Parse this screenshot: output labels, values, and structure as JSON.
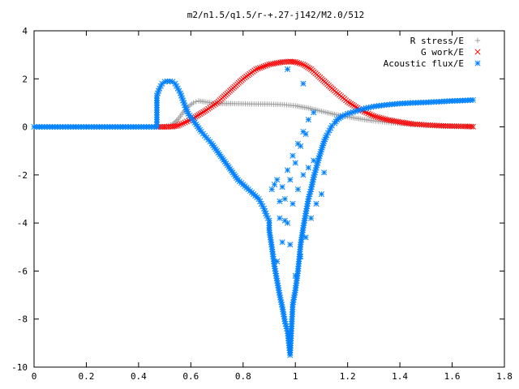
{
  "chart_data": {
    "type": "scatter",
    "title": "m2/n1.5/q1.5/r-+.27-j142/M2.0/512",
    "xlabel": "",
    "ylabel": "",
    "xlim": [
      0,
      1.8
    ],
    "ylim": [
      -10,
      4
    ],
    "x_ticks": [
      "0",
      "0.2",
      "0.4",
      "0.6",
      "0.8",
      "1",
      "1.2",
      "1.4",
      "1.6",
      "1.8"
    ],
    "y_ticks": [
      "4",
      "2",
      "0",
      "-2",
      "-4",
      "-6",
      "-8",
      "-10"
    ],
    "grid": false,
    "legend_position": "top-right",
    "series": [
      {
        "name": "R stress/E",
        "marker": "plus",
        "color": "#a0a0a0",
        "x": [
          0.47,
          0.5,
          0.53,
          0.55,
          0.57,
          0.59,
          0.61,
          0.62,
          0.63,
          0.65,
          0.68,
          0.7,
          0.73,
          0.76,
          0.8,
          0.85,
          0.9,
          0.95,
          1.0,
          1.05,
          1.1,
          1.15,
          1.2,
          1.25,
          1.3,
          1.35,
          1.4,
          1.45,
          1.5,
          1.55,
          1.6,
          1.65,
          1.68
        ],
        "y": [
          0.0,
          0.02,
          0.1,
          0.3,
          0.6,
          0.85,
          1.0,
          1.05,
          1.08,
          1.05,
          1.0,
          0.98,
          0.97,
          0.97,
          0.96,
          0.95,
          0.95,
          0.93,
          0.88,
          0.78,
          0.65,
          0.52,
          0.42,
          0.33,
          0.25,
          0.19,
          0.14,
          0.1,
          0.07,
          0.05,
          0.04,
          0.03,
          0.02
        ]
      },
      {
        "name": "G work/E",
        "marker": "cross",
        "color": "#ff0000",
        "x": [
          0.47,
          0.5,
          0.53,
          0.55,
          0.57,
          0.6,
          0.63,
          0.66,
          0.7,
          0.75,
          0.8,
          0.85,
          0.9,
          0.95,
          0.98,
          1.0,
          1.03,
          1.06,
          1.1,
          1.15,
          1.2,
          1.25,
          1.3,
          1.35,
          1.4,
          1.45,
          1.5,
          1.55,
          1.6,
          1.65,
          1.68
        ],
        "y": [
          0.0,
          0.0,
          0.01,
          0.05,
          0.15,
          0.3,
          0.5,
          0.7,
          1.0,
          1.5,
          2.0,
          2.4,
          2.6,
          2.7,
          2.72,
          2.7,
          2.6,
          2.4,
          2.0,
          1.5,
          1.05,
          0.7,
          0.45,
          0.3,
          0.2,
          0.12,
          0.08,
          0.05,
          0.03,
          0.02,
          0.01
        ]
      },
      {
        "name": "Acoustic flux/E",
        "marker": "star",
        "color": "#0080ff",
        "x": [
          0.0,
          0.04,
          0.08,
          0.12,
          0.16,
          0.2,
          0.24,
          0.28,
          0.32,
          0.36,
          0.4,
          0.44,
          0.47,
          0.47,
          0.48,
          0.49,
          0.5,
          0.51,
          0.52,
          0.53,
          0.54,
          0.55,
          0.56,
          0.57,
          0.58,
          0.59,
          0.6,
          0.61,
          0.62,
          0.63,
          0.64,
          0.66,
          0.68,
          0.7,
          0.72,
          0.74,
          0.76,
          0.78,
          0.8,
          0.82,
          0.84,
          0.86,
          0.87,
          0.88,
          0.89,
          0.9,
          0.9,
          0.91,
          0.92,
          0.93,
          0.94,
          0.95,
          0.96,
          0.97,
          0.98,
          0.99,
          1.0,
          1.01,
          1.02,
          1.03,
          1.04,
          1.05,
          1.06,
          1.07,
          1.08,
          1.09,
          1.1,
          1.11,
          1.12,
          1.13,
          1.14,
          1.15,
          1.16,
          1.18,
          1.2,
          1.23,
          1.26,
          1.3,
          1.35,
          1.4,
          1.45,
          1.5,
          1.55,
          1.6,
          1.65,
          1.68,
          0.95,
          0.97,
          0.99,
          1.01,
          1.03,
          1.05,
          0.94,
          0.96,
          0.98,
          1.0,
          1.02,
          1.04,
          0.93,
          0.95,
          0.97,
          0.99,
          1.01,
          1.03,
          1.05,
          1.07,
          1.09,
          0.92,
          0.94,
          0.96,
          0.98,
          1.0,
          1.02,
          1.04,
          1.06,
          1.08,
          1.1,
          0.91,
          0.93,
          0.97,
          1.03,
          1.07,
          1.11
        ],
        "y": [
          0.0,
          0.0,
          0.0,
          0.0,
          0.0,
          0.0,
          0.0,
          0.0,
          0.0,
          0.0,
          0.0,
          0.0,
          0.0,
          1.3,
          1.6,
          1.8,
          1.88,
          1.9,
          1.9,
          1.88,
          1.8,
          1.6,
          1.4,
          1.1,
          0.8,
          0.55,
          0.4,
          0.25,
          0.1,
          -0.05,
          -0.2,
          -0.45,
          -0.7,
          -1.0,
          -1.3,
          -1.6,
          -1.9,
          -2.2,
          -2.4,
          -2.6,
          -2.8,
          -3.0,
          -3.2,
          -3.4,
          -3.7,
          -3.9,
          -4.3,
          -5.0,
          -5.8,
          -6.4,
          -7.0,
          -7.5,
          -8.1,
          -8.5,
          -9.5,
          -7.4,
          -6.8,
          -6.0,
          -4.9,
          -4.2,
          -3.6,
          -3.0,
          -2.6,
          -2.1,
          -1.7,
          -1.3,
          -0.95,
          -0.6,
          -0.35,
          -0.15,
          0.05,
          0.15,
          0.3,
          0.45,
          0.55,
          0.65,
          0.75,
          0.85,
          0.92,
          0.97,
          1.0,
          1.02,
          1.05,
          1.08,
          1.1,
          1.12,
          -2.5,
          -1.8,
          -1.2,
          -0.7,
          -0.2,
          0.3,
          -3.8,
          -3.0,
          -2.2,
          -1.5,
          -0.8,
          -0.3,
          -5.6,
          -4.8,
          -4.0,
          -3.2,
          -2.6,
          -2.0,
          -1.7,
          -1.4,
          -1.3,
          -2.4,
          -3.1,
          -3.9,
          -4.9,
          -6.2,
          -5.4,
          -4.6,
          -3.8,
          -3.2,
          -2.8,
          -2.6,
          -2.2,
          2.4,
          1.8,
          0.6,
          -1.9
        ]
      }
    ]
  }
}
